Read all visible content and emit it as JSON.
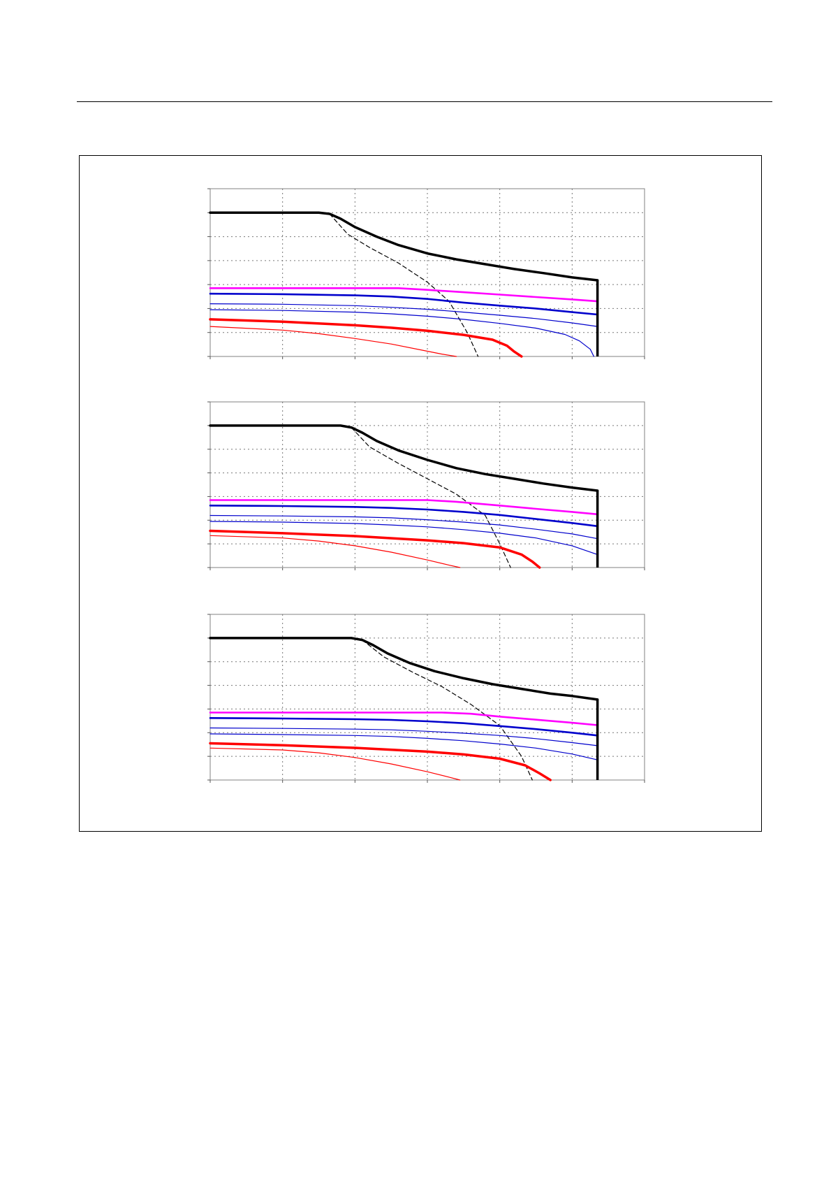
{
  "chart_data": [
    {
      "type": "line",
      "xlim": [
        0,
        6
      ],
      "ylim": [
        0,
        7
      ],
      "grid": true,
      "series": [
        {
          "color": "#000000",
          "style": "solid",
          "weight": "bold",
          "x": [
            0,
            1.5,
            1.65,
            1.8,
            2.0,
            2.3,
            2.6,
            3.0,
            3.4,
            3.8,
            4.2,
            4.6,
            5.0,
            5.35
          ],
          "y": [
            6.0,
            6.0,
            5.95,
            5.75,
            5.4,
            5.0,
            4.65,
            4.3,
            4.05,
            3.85,
            3.65,
            3.48,
            3.3,
            3.18
          ]
        },
        {
          "color": "#000000",
          "style": "dashed",
          "weight": "thin",
          "x": [
            1.65,
            1.9,
            2.2,
            2.6,
            3.0,
            3.3,
            3.55,
            3.7
          ],
          "y": [
            5.95,
            5.1,
            4.55,
            3.9,
            3.1,
            2.3,
            1.0,
            0.0
          ]
        },
        {
          "color": "#ff00ff",
          "style": "solid",
          "weight": "medium",
          "x": [
            0,
            2.0,
            2.6,
            3.0,
            3.5,
            4.0,
            4.5,
            5.0,
            5.35
          ],
          "y": [
            2.85,
            2.85,
            2.85,
            2.78,
            2.68,
            2.58,
            2.48,
            2.38,
            2.3
          ]
        },
        {
          "color": "#0000cc",
          "style": "solid",
          "weight": "medium",
          "x": [
            0,
            1.0,
            2.0,
            2.5,
            3.0,
            3.5,
            4.0,
            4.5,
            5.0,
            5.35
          ],
          "y": [
            2.62,
            2.6,
            2.55,
            2.5,
            2.4,
            2.25,
            2.12,
            2.0,
            1.85,
            1.75
          ]
        },
        {
          "color": "#0000cc",
          "style": "solid",
          "weight": "thin",
          "x": [
            0,
            1.0,
            2.0,
            2.5,
            3.0,
            3.5,
            4.0,
            4.5,
            5.0,
            5.35
          ],
          "y": [
            2.2,
            2.18,
            2.12,
            2.05,
            1.97,
            1.85,
            1.72,
            1.58,
            1.4,
            1.25
          ]
        },
        {
          "color": "#0000cc",
          "style": "solid",
          "weight": "thin",
          "x": [
            0,
            1.0,
            2.0,
            2.5,
            3.0,
            3.5,
            4.0,
            4.5,
            4.9,
            5.1,
            5.25,
            5.3
          ],
          "y": [
            1.95,
            1.92,
            1.85,
            1.78,
            1.68,
            1.55,
            1.38,
            1.18,
            0.92,
            0.65,
            0.3,
            0.0
          ]
        },
        {
          "color": "#ff0000",
          "style": "solid",
          "weight": "bold",
          "x": [
            0,
            1.0,
            2.0,
            2.5,
            3.0,
            3.5,
            3.9,
            4.1,
            4.2,
            4.3
          ],
          "y": [
            1.55,
            1.45,
            1.3,
            1.2,
            1.07,
            0.9,
            0.7,
            0.45,
            0.2,
            0.0
          ]
        },
        {
          "color": "#ff0000",
          "style": "solid",
          "weight": "thin",
          "x": [
            0,
            1.0,
            1.5,
            2.0,
            2.5,
            3.0,
            3.2,
            3.4
          ],
          "y": [
            1.25,
            1.1,
            0.95,
            0.75,
            0.52,
            0.22,
            0.1,
            0.0
          ]
        }
      ]
    },
    {
      "type": "line",
      "xlim": [
        0,
        6
      ],
      "ylim": [
        0,
        7
      ],
      "grid": true,
      "series": [
        {
          "color": "#000000",
          "style": "solid",
          "weight": "bold",
          "x": [
            0,
            1.8,
            1.95,
            2.1,
            2.3,
            2.6,
            3.0,
            3.4,
            3.8,
            4.2,
            4.6,
            5.0,
            5.35
          ],
          "y": [
            6.0,
            6.0,
            5.92,
            5.7,
            5.35,
            4.95,
            4.55,
            4.2,
            3.95,
            3.75,
            3.55,
            3.38,
            3.25
          ]
        },
        {
          "color": "#000000",
          "style": "dashed",
          "weight": "thin",
          "x": [
            1.95,
            2.2,
            2.6,
            3.0,
            3.4,
            3.8,
            4.0,
            4.15
          ],
          "y": [
            5.92,
            5.1,
            4.4,
            3.75,
            3.1,
            2.2,
            1.0,
            0.0
          ]
        },
        {
          "color": "#ff00ff",
          "style": "solid",
          "weight": "medium",
          "x": [
            0,
            2.0,
            3.0,
            3.4,
            4.0,
            4.5,
            5.0,
            5.35
          ],
          "y": [
            2.85,
            2.85,
            2.85,
            2.78,
            2.62,
            2.48,
            2.35,
            2.25
          ]
        },
        {
          "color": "#0000cc",
          "style": "solid",
          "weight": "medium",
          "x": [
            0,
            1.0,
            2.0,
            2.5,
            3.0,
            3.5,
            4.0,
            4.5,
            5.0,
            5.35
          ],
          "y": [
            2.62,
            2.6,
            2.56,
            2.52,
            2.45,
            2.35,
            2.22,
            2.05,
            1.88,
            1.75
          ]
        },
        {
          "color": "#0000cc",
          "style": "solid",
          "weight": "thin",
          "x": [
            0,
            1.0,
            2.0,
            2.5,
            3.0,
            3.5,
            4.0,
            4.5,
            5.0,
            5.35
          ],
          "y": [
            2.2,
            2.18,
            2.14,
            2.1,
            2.02,
            1.92,
            1.8,
            1.62,
            1.42,
            1.22
          ]
        },
        {
          "color": "#0000cc",
          "style": "solid",
          "weight": "thin",
          "x": [
            0,
            1.0,
            2.0,
            2.5,
            3.0,
            3.5,
            4.0,
            4.5,
            5.0,
            5.35
          ],
          "y": [
            1.95,
            1.92,
            1.86,
            1.8,
            1.72,
            1.6,
            1.45,
            1.25,
            0.92,
            0.55
          ]
        },
        {
          "color": "#ff0000",
          "style": "solid",
          "weight": "bold",
          "x": [
            0,
            1.0,
            2.0,
            3.0,
            3.5,
            4.0,
            4.3,
            4.45,
            4.55
          ],
          "y": [
            1.55,
            1.45,
            1.33,
            1.15,
            1.03,
            0.85,
            0.55,
            0.25,
            0.0
          ]
        },
        {
          "color": "#ff0000",
          "style": "solid",
          "weight": "thin",
          "x": [
            0,
            1.0,
            1.5,
            2.0,
            2.5,
            3.0,
            3.3,
            3.45
          ],
          "y": [
            1.35,
            1.25,
            1.12,
            0.92,
            0.65,
            0.32,
            0.1,
            0.0
          ]
        }
      ]
    },
    {
      "type": "line",
      "xlim": [
        0,
        6
      ],
      "ylim": [
        0,
        7
      ],
      "grid": true,
      "series": [
        {
          "color": "#000000",
          "style": "solid",
          "weight": "bold",
          "x": [
            0,
            1.95,
            2.1,
            2.25,
            2.45,
            2.75,
            3.1,
            3.5,
            3.9,
            4.3,
            4.7,
            5.0,
            5.35
          ],
          "y": [
            6.0,
            6.0,
            5.92,
            5.7,
            5.35,
            4.95,
            4.6,
            4.3,
            4.05,
            3.85,
            3.65,
            3.55,
            3.4
          ]
        },
        {
          "color": "#000000",
          "style": "dashed",
          "weight": "thin",
          "x": [
            2.1,
            2.4,
            2.8,
            3.2,
            3.6,
            4.0,
            4.3,
            4.45
          ],
          "y": [
            5.92,
            5.2,
            4.55,
            3.95,
            3.2,
            2.3,
            1.0,
            0.0
          ]
        },
        {
          "color": "#ff00ff",
          "style": "solid",
          "weight": "medium",
          "x": [
            0,
            2.0,
            3.2,
            3.6,
            4.0,
            4.5,
            5.0,
            5.35
          ],
          "y": [
            2.85,
            2.85,
            2.85,
            2.8,
            2.68,
            2.55,
            2.42,
            2.32
          ]
        },
        {
          "color": "#0000cc",
          "style": "solid",
          "weight": "medium",
          "x": [
            0,
            1.0,
            2.0,
            2.5,
            3.0,
            3.5,
            4.0,
            4.5,
            5.0,
            5.35
          ],
          "y": [
            2.62,
            2.6,
            2.57,
            2.54,
            2.48,
            2.4,
            2.28,
            2.15,
            2.0,
            1.88
          ]
        },
        {
          "color": "#0000cc",
          "style": "solid",
          "weight": "thin",
          "x": [
            0,
            1.0,
            2.0,
            2.5,
            3.0,
            3.5,
            4.0,
            4.5,
            5.0,
            5.35
          ],
          "y": [
            2.2,
            2.18,
            2.15,
            2.12,
            2.06,
            1.98,
            1.88,
            1.75,
            1.58,
            1.45
          ]
        },
        {
          "color": "#0000cc",
          "style": "solid",
          "weight": "thin",
          "x": [
            0,
            1.0,
            2.0,
            2.5,
            3.0,
            3.5,
            4.0,
            4.5,
            5.0,
            5.35
          ],
          "y": [
            1.95,
            1.92,
            1.88,
            1.84,
            1.76,
            1.66,
            1.52,
            1.35,
            1.1,
            0.85
          ]
        },
        {
          "color": "#ff0000",
          "style": "solid",
          "weight": "bold",
          "x": [
            0,
            1.0,
            2.0,
            3.0,
            3.5,
            4.0,
            4.35,
            4.55,
            4.7
          ],
          "y": [
            1.55,
            1.47,
            1.36,
            1.2,
            1.08,
            0.9,
            0.62,
            0.28,
            0.0
          ]
        },
        {
          "color": "#ff0000",
          "style": "solid",
          "weight": "thin",
          "x": [
            0,
            1.0,
            1.5,
            2.0,
            2.5,
            3.0,
            3.3,
            3.45
          ],
          "y": [
            1.35,
            1.27,
            1.15,
            0.95,
            0.68,
            0.35,
            0.12,
            0.0
          ]
        }
      ]
    }
  ]
}
